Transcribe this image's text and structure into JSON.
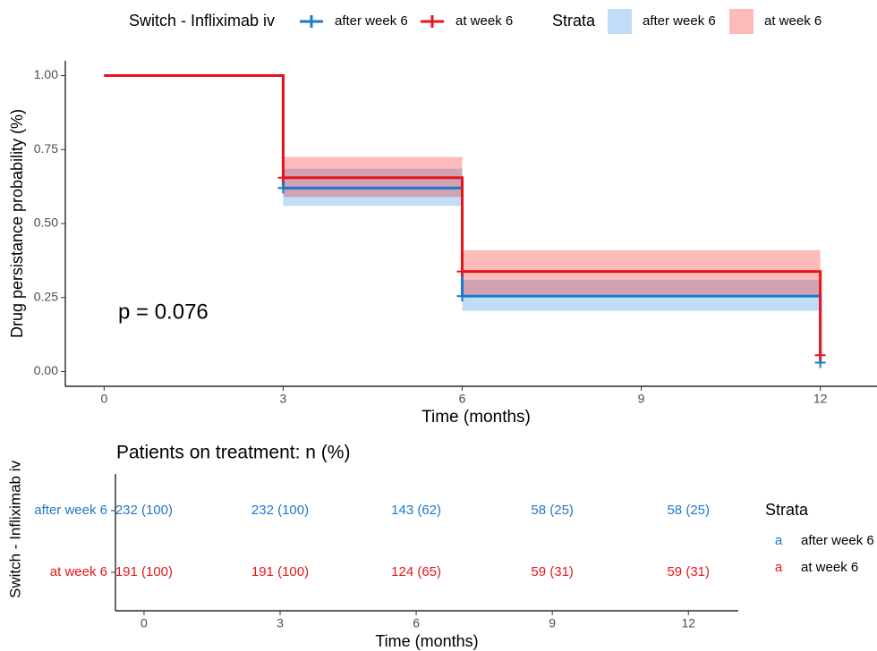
{
  "chart_data": [
    {
      "type": "step",
      "legend_title": "Switch - Infliximab iv",
      "band_legend_title": "Strata",
      "ylabel": "Drug persistance probability (%)",
      "xlabel": "Time (months)",
      "annotation": "p = 0.076",
      "x": [
        0,
        3,
        6,
        12
      ],
      "series": [
        {
          "name": "after week 6",
          "color": "#1f78c8",
          "band_color": "#2b8fe0",
          "values": [
            1,
            0.62,
            0.255,
            0.03
          ],
          "lower": [
            1,
            0.56,
            0.205,
            null
          ],
          "upper": [
            1,
            0.685,
            0.31,
            null
          ]
        },
        {
          "name": "at week 6",
          "color": "#e8141a",
          "band_color": "#f41c1c",
          "values": [
            1,
            0.655,
            0.338,
            0.055
          ],
          "lower": [
            1,
            0.59,
            0.26,
            null
          ],
          "upper": [
            1,
            0.725,
            0.41,
            null
          ]
        }
      ],
      "band_alpha": 0.3,
      "xlim": [
        -0.65,
        12.95
      ],
      "ylim": [
        -0.05,
        1.05
      ],
      "xticks": [
        0,
        3,
        6,
        9,
        12
      ],
      "yticks": [
        {
          "value": 0,
          "label": "0.00"
        },
        {
          "value": 0.25,
          "label": "0.25"
        },
        {
          "value": 0.5,
          "label": "0.50"
        },
        {
          "value": 0.75,
          "label": "0.75"
        },
        {
          "value": 1,
          "label": "1.00"
        }
      ],
      "legend_position": "top"
    },
    {
      "type": "table",
      "title": "Patients on treatment: n (%)",
      "ylabel": "Switch - Infliximab iv",
      "xlabel": "Time (months)",
      "x": [
        0,
        3,
        6,
        9,
        12
      ],
      "xlim": [
        -0.63,
        13.1
      ],
      "xticks": [
        0,
        3,
        6,
        9,
        12
      ],
      "legend_title": "Strata",
      "key_glyph": "a",
      "rows": [
        {
          "name": "after week 6",
          "color": "#1f78c8",
          "labels": [
            "232 (100)",
            "232 (100)",
            "143 (62)",
            "58 (25)",
            "58 (25)"
          ]
        },
        {
          "name": "at week 6",
          "color": "#e8141a",
          "labels": [
            "191 (100)",
            "191 (100)",
            "124 (65)",
            "59 (31)",
            "59 (31)"
          ]
        }
      ]
    }
  ]
}
